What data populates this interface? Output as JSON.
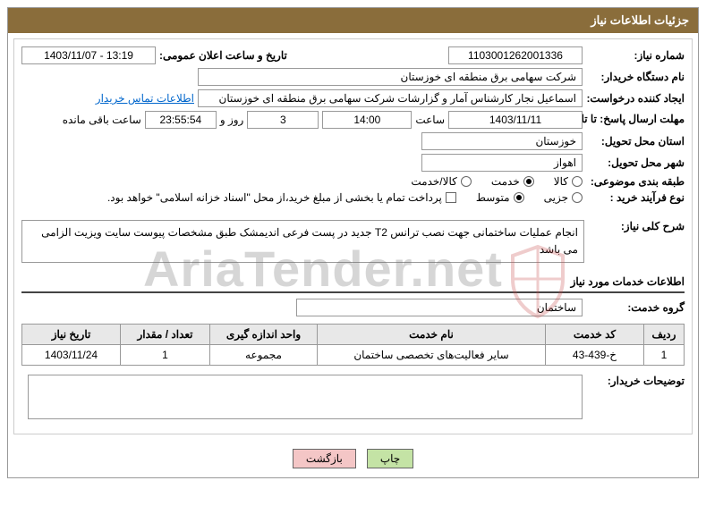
{
  "title_bar": "جزئیات اطلاعات نیاز",
  "rows": {
    "req_no_label": "شماره نیاز:",
    "req_no": "1103001262001336",
    "announce_label": "تاریخ و ساعت اعلان عمومی:",
    "announce": "1403/11/07 - 13:19",
    "buyer_label": "نام دستگاه خریدار:",
    "buyer": "شرکت سهامی برق منطقه ای خوزستان",
    "creator_label": "ایجاد کننده درخواست:",
    "creator": "اسماعیل نجار کارشناس آمار و گزارشات شرکت سهامی برق منطقه ای خوزستان",
    "contact_link": "اطلاعات تماس خریدار",
    "deadline_label": "مهلت ارسال پاسخ: تا تاریخ:",
    "deadline_date": "1403/11/11",
    "time_label": "ساعت",
    "deadline_time": "14:00",
    "days": "3",
    "days_label": "روز و",
    "countdown": "23:55:54",
    "remain_label": "ساعت باقی مانده",
    "province_label": "استان محل تحویل:",
    "province": "خوزستان",
    "city_label": "شهر محل تحویل:",
    "city": "اهواز",
    "cat_label": "طبقه بندی موضوعی:",
    "cat_kala": "کالا",
    "cat_khidmat": "خدمت",
    "cat_kala_khidmat": "کالا/خدمت",
    "type_label": "نوع فرآیند خرید :",
    "type_partial": "جزیی",
    "type_medium": "متوسط",
    "payment_note": "پرداخت تمام یا بخشی از مبلغ خرید،از محل \"اسناد خزانه اسلامی\" خواهد بود.",
    "desc_label": "شرح کلی نیاز:",
    "desc": "انجام عملیات ساختمانی جهت نصب ترانس T2 جدید در پست فرعی اندیمشک طبق مشخصات پیوست سایت ویزیت الزامی می باشد",
    "services_header": "اطلاعات خدمات مورد نیاز",
    "service_group_label": "گروه خدمت:",
    "service_group": "ساختمان",
    "buyer_notes_label": "توضیحات خریدار:"
  },
  "table": {
    "headers": [
      "ردیف",
      "کد خدمت",
      "نام خدمت",
      "واحد اندازه گیری",
      "تعداد / مقدار",
      "تاریخ نیاز"
    ],
    "rows": [
      [
        "1",
        "خ-439-43",
        "سایر فعالیت‌های تخصصی ساختمان",
        "مجموعه",
        "1",
        "1403/11/24"
      ]
    ],
    "col_widths": [
      "45px",
      "110px",
      "auto",
      "120px",
      "100px",
      "110px"
    ]
  },
  "buttons": {
    "print": "چاپ",
    "back": "بازگشت"
  },
  "watermark": {
    "text": "AriaTender.net",
    "shield_stroke": "#c84b4b"
  }
}
